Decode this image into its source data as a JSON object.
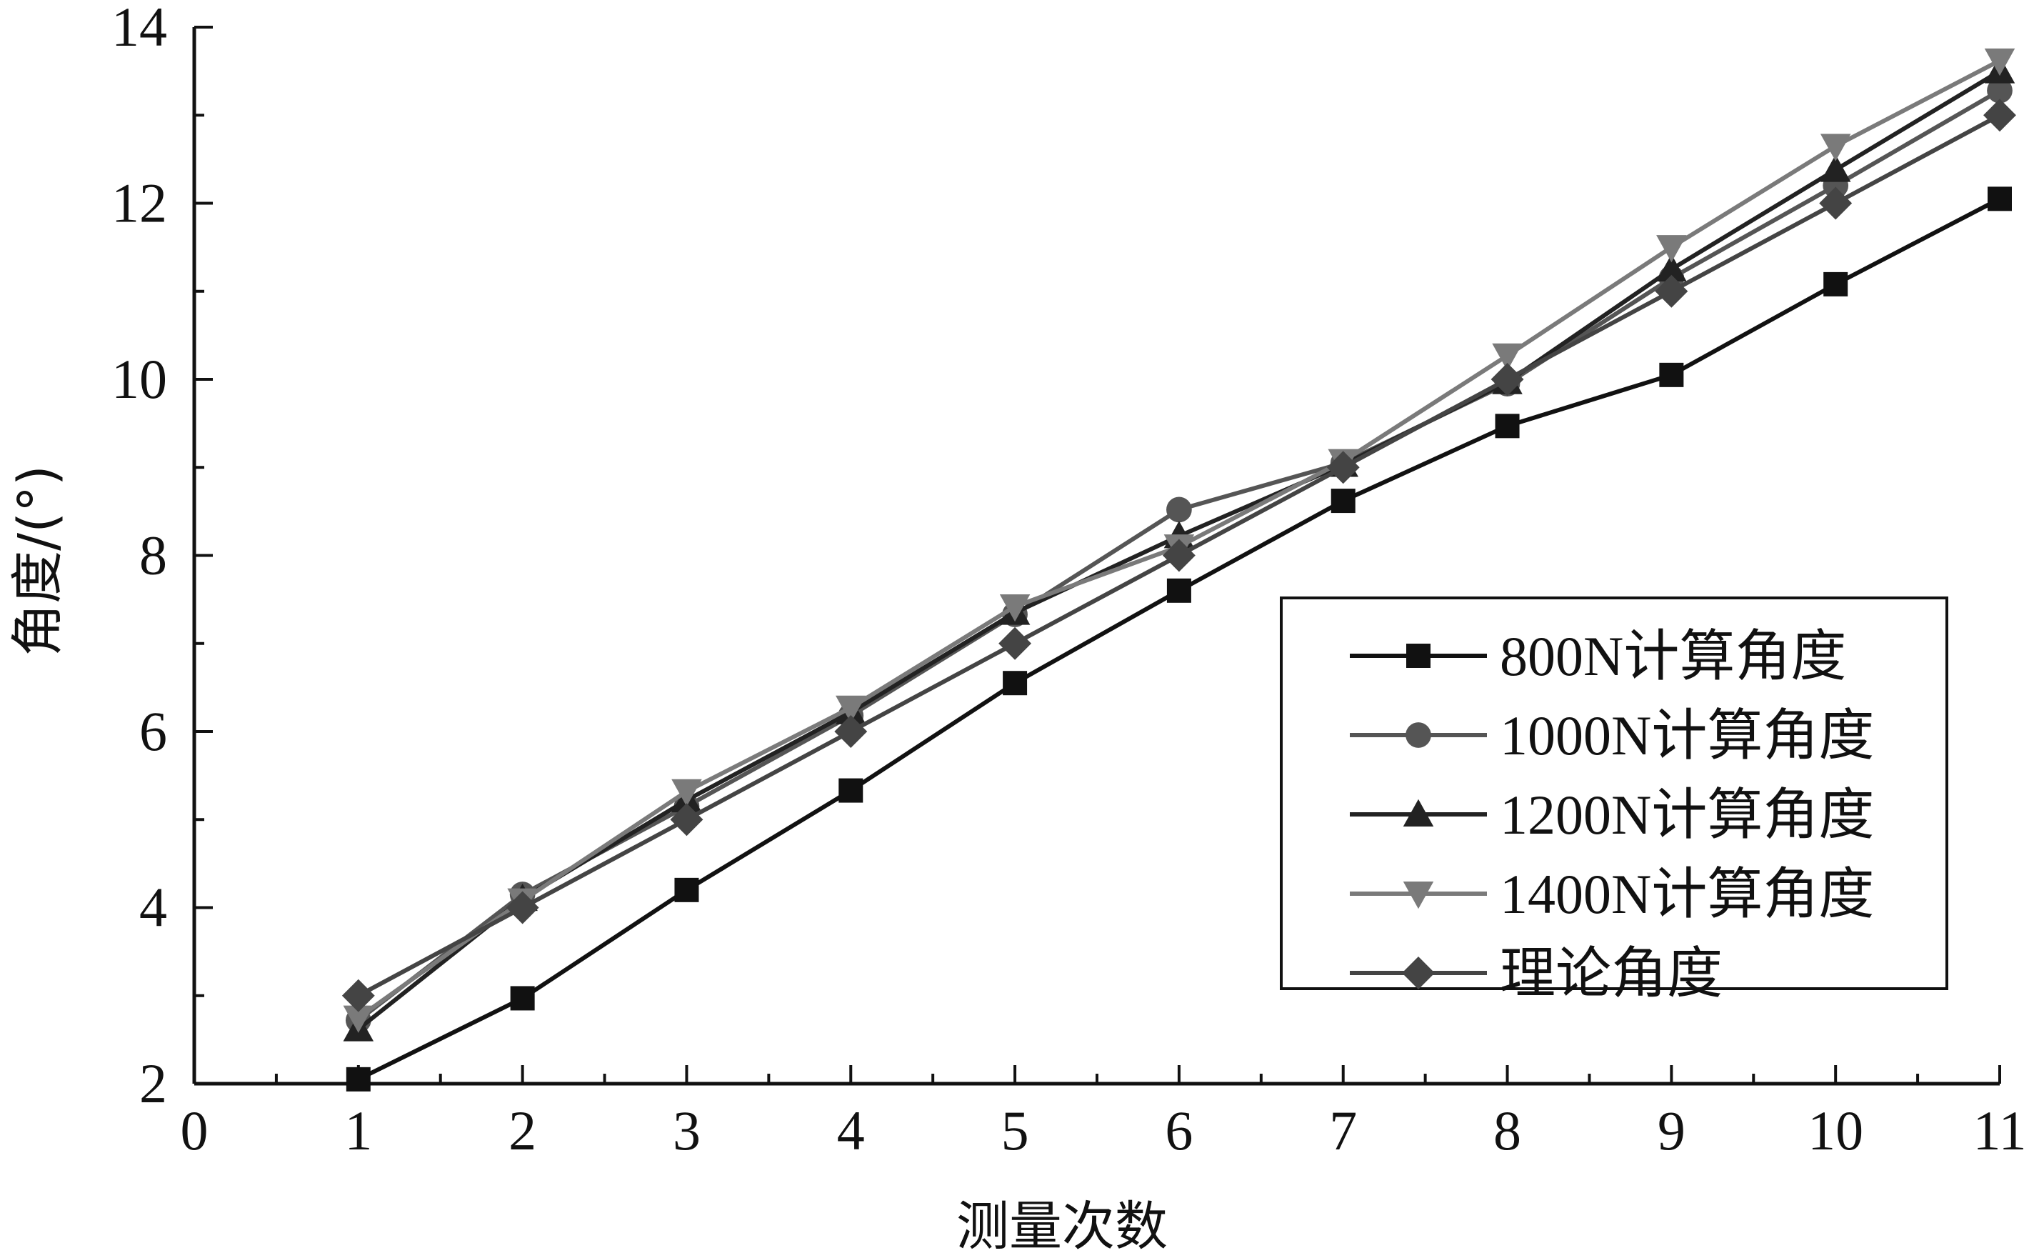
{
  "chart_data": {
    "type": "line",
    "xlabel": "测量次数",
    "ylabel": "角度/(°)",
    "xlim": [
      0,
      11
    ],
    "ylim": [
      2,
      14
    ],
    "x_ticks": [
      "0",
      "1",
      "2",
      "3",
      "4",
      "5",
      "6",
      "7",
      "8",
      "9",
      "10",
      "11"
    ],
    "y_ticks": [
      "2",
      "4",
      "6",
      "8",
      "10",
      "12",
      "14"
    ],
    "grid": false,
    "legend_position": "right",
    "x": [
      1,
      2,
      3,
      4,
      5,
      6,
      7,
      8,
      9,
      10,
      11
    ],
    "series": [
      {
        "name": "800N计算角度",
        "marker": "square",
        "color": "#111111",
        "values": [
          2.05,
          2.97,
          4.2,
          5.33,
          6.55,
          7.6,
          8.62,
          9.47,
          10.05,
          11.08,
          12.05
        ]
      },
      {
        "name": "1000N计算角度",
        "marker": "circle",
        "color": "#555555",
        "values": [
          2.72,
          4.15,
          5.15,
          6.18,
          7.33,
          8.52,
          9.05,
          9.95,
          11.15,
          12.2,
          13.28
        ]
      },
      {
        "name": "1200N计算角度",
        "marker": "triangle-up",
        "color": "#222222",
        "values": [
          2.62,
          4.1,
          5.22,
          6.22,
          7.35,
          8.22,
          9.03,
          9.97,
          11.25,
          12.38,
          13.5
        ]
      },
      {
        "name": "1400N计算角度",
        "marker": "triangle-down",
        "color": "#7a7a7a",
        "values": [
          2.75,
          4.08,
          5.32,
          6.27,
          7.42,
          8.1,
          9.07,
          10.27,
          11.5,
          12.65,
          13.62
        ]
      },
      {
        "name": "理论角度",
        "marker": "diamond",
        "color": "#444444",
        "values": [
          3.0,
          4.0,
          5.0,
          6.0,
          7.0,
          8.0,
          9.0,
          10.0,
          11.0,
          12.0,
          13.0
        ]
      }
    ]
  }
}
